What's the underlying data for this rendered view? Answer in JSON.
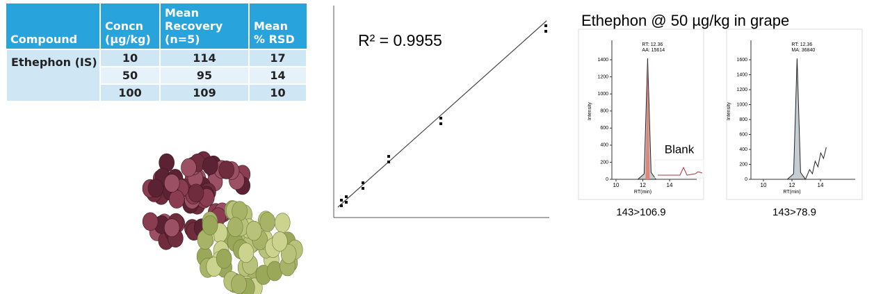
{
  "table": {
    "headers": [
      "Compound",
      "Concn (µg/kg)",
      "Mean Recovery (n=5)",
      "Mean % RSD"
    ],
    "compound": "Ethephon (IS)",
    "rows": [
      [
        "10",
        "114",
        "17"
      ],
      [
        "50",
        "95",
        "14"
      ],
      [
        "100",
        "109",
        "10"
      ]
    ]
  },
  "calibration": {
    "r2": "R² = 0.9955"
  },
  "chromatograms": {
    "title": "Ethephon @ 50 µg/kg in grape",
    "panels": [
      {
        "rt": "RT: 12.36",
        "area": "AA: 15614",
        "yticks": [
          0,
          200,
          400,
          600,
          800,
          1000,
          1200,
          1400
        ],
        "xticks": [
          10,
          12,
          14
        ],
        "ylabel": "Intensity",
        "xlabel": "RT(min)",
        "blank": "Blank",
        "caption": "143>106.9"
      },
      {
        "rt": "RT: 12.36",
        "area": "MA: 36840",
        "yticks": [
          0,
          200,
          400,
          600,
          800,
          1000,
          1200,
          1400,
          1600
        ],
        "xticks": [
          10,
          12,
          14
        ],
        "ylabel": "Intensity",
        "xlabel": "RT(min)",
        "caption": "143>78.9"
      }
    ]
  }
}
